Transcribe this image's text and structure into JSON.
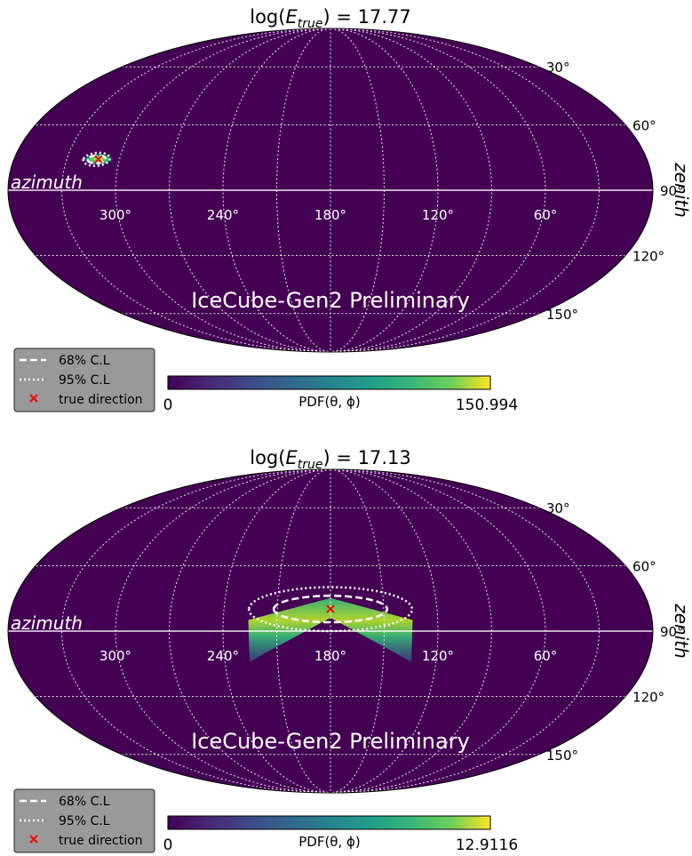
{
  "colorbar_label": "PDF(θ, ϕ)",
  "watermark": "IceCube-Gen2 Preliminary",
  "axis_azimuth_label": "azimuth",
  "axis_zenith_label": "zenith",
  "legend": {
    "items": [
      {
        "label": "68% C.L",
        "style": "dashed"
      },
      {
        "label": "95% C.L",
        "style": "dotted"
      },
      {
        "label": "true direction",
        "style": "marker-x"
      }
    ]
  },
  "colors": {
    "background": "#440154",
    "grid": "#ffffff",
    "true_direction": "#ff0000",
    "legend_bg": "#999999"
  },
  "chart_data": [
    {
      "type": "heatmap",
      "projection": "mollweide",
      "title_prefix": "log(",
      "title_var": "E",
      "title_sub": "true",
      "title_suffix": ") = 17.77",
      "colorbar_min": "0",
      "colorbar_max": "150.994",
      "azimuth_ticks": [
        {
          "value": 300,
          "label": "300°"
        },
        {
          "value": 240,
          "label": "240°"
        },
        {
          "value": 180,
          "label": "180°"
        },
        {
          "value": 120,
          "label": "120°"
        },
        {
          "value": 60,
          "label": "60°"
        }
      ],
      "zenith_ticks": [
        {
          "value": 30,
          "label": "30°"
        },
        {
          "value": 60,
          "label": "60°"
        },
        {
          "value": 90,
          "label": "90°"
        },
        {
          "value": 120,
          "label": "120°"
        },
        {
          "value": 150,
          "label": "150°"
        }
      ],
      "true_direction": {
        "azimuth": 312,
        "zenith": 76
      },
      "cl68": {
        "azimuth_center": 313,
        "zenith_center": 76,
        "azimuth_halfwidth": 5,
        "zenith_halfwidth": 1.8
      },
      "cl95": {
        "azimuth_center": 313,
        "zenith_center": 76,
        "azimuth_halfwidth": 7.5,
        "zenith_halfwidth": 3
      }
    },
    {
      "type": "heatmap",
      "projection": "mollweide",
      "title_prefix": "log(",
      "title_var": "E",
      "title_sub": "true",
      "title_suffix": ") = 17.13",
      "colorbar_min": "0",
      "colorbar_max": "12.9116",
      "azimuth_ticks": [
        {
          "value": 300,
          "label": "300°"
        },
        {
          "value": 240,
          "label": "240°"
        },
        {
          "value": 180,
          "label": "180°"
        },
        {
          "value": 120,
          "label": "120°"
        },
        {
          "value": 60,
          "label": "60°"
        }
      ],
      "zenith_ticks": [
        {
          "value": 30,
          "label": "30°"
        },
        {
          "value": 60,
          "label": "60°"
        },
        {
          "value": 90,
          "label": "90°"
        },
        {
          "value": 120,
          "label": "120°"
        },
        {
          "value": 150,
          "label": "150°"
        }
      ],
      "true_direction": {
        "azimuth": 180,
        "zenith": 80
      },
      "cl68": {
        "azimuth_center": 180,
        "zenith_center": 80,
        "azimuth_halfwidth": 32,
        "zenith_halfwidth": 6
      },
      "cl95": {
        "azimuth_center": 180,
        "zenith_center": 80,
        "azimuth_halfwidth": 46,
        "zenith_halfwidth": 10
      }
    }
  ]
}
